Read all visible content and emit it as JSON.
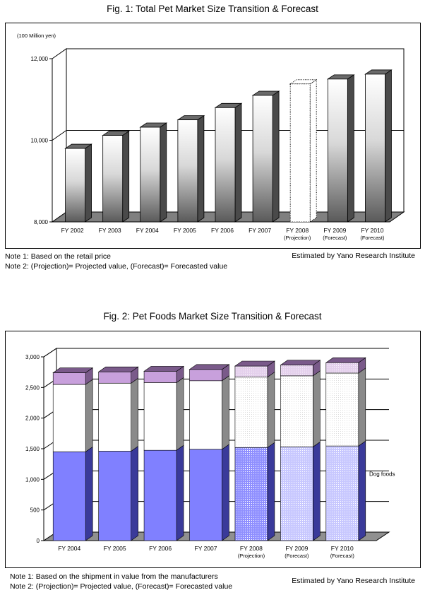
{
  "chart_data": [
    {
      "type": "bar",
      "title": "Fig. 1: Total Pet Market Size Transition & Forecast",
      "unit_label": "(100 Million yen)",
      "categories": [
        [
          "FY 2002"
        ],
        [
          "FY 2003"
        ],
        [
          "FY 2004"
        ],
        [
          "FY 2005"
        ],
        [
          "FY 2006"
        ],
        [
          "FY 2007"
        ],
        [
          "FY 2008",
          "(Projection)"
        ],
        [
          "FY 2009",
          "(Forecast)"
        ],
        [
          "FY 2010",
          "(Forecast)"
        ]
      ],
      "values": [
        9800,
        10120,
        10320,
        10500,
        10800,
        11100,
        11380,
        11500,
        11620
      ],
      "styles": [
        "solid",
        "solid",
        "solid",
        "solid",
        "solid",
        "solid",
        "dotted",
        "solid",
        "solid"
      ],
      "ylim": [
        8000,
        12000
      ],
      "yticks": [
        8000,
        10000,
        12000
      ],
      "ytick_labels": [
        "8,000",
        "10,000",
        "12,000"
      ],
      "grid": true,
      "notes": [
        "Note 1: Based on the retail price",
        "Note 2: (Projection)= Projected value, (Forecast)= Forecasted value"
      ],
      "credit": "Estimated by Yano Research Institute"
    },
    {
      "type": "bar",
      "stacked": true,
      "title": "Fig. 2: Pet Foods Market Size Transition & Forecast",
      "categories": [
        [
          "FY 2004"
        ],
        [
          "FY 2005"
        ],
        [
          "FY 2006"
        ],
        [
          "FY 2007"
        ],
        [
          "FY 2008",
          "(Projection)"
        ],
        [
          "FY 2009",
          "(Forecast)"
        ],
        [
          "FY 2010",
          "(Forecast)"
        ]
      ],
      "series": [
        {
          "name": "Dog foods",
          "values": [
            1450,
            1460,
            1475,
            1490,
            1520,
            1530,
            1545
          ],
          "color": "#8080ff",
          "side_color": "#3a3a9a"
        },
        {
          "name": "",
          "values": [
            1100,
            1110,
            1105,
            1120,
            1150,
            1160,
            1190
          ],
          "color": "#ffffff",
          "side_color": "#8a8a8a"
        },
        {
          "name": "",
          "values": [
            190,
            185,
            185,
            185,
            180,
            175,
            170
          ],
          "color": "#c8a0dc",
          "side_color": "#7a5a8a"
        }
      ],
      "styles": [
        "solid",
        "solid",
        "solid",
        "solid",
        "projection",
        "forecast",
        "forecast"
      ],
      "ylim": [
        0,
        3000
      ],
      "yticks": [
        0,
        500,
        1000,
        1500,
        2000,
        2500,
        3000
      ],
      "ytick_labels": [
        "0",
        "500",
        "1,000",
        "1,500",
        "2,000",
        "2,500",
        "3,000"
      ],
      "grid": true,
      "notes": [
        "Note 1: Based on the shipment in value from the manufacturers",
        "Note 2: (Projection)= Projected value, (Forecast)= Forecasted value"
      ],
      "credit": "Estimated by Yano Research Institute"
    }
  ]
}
